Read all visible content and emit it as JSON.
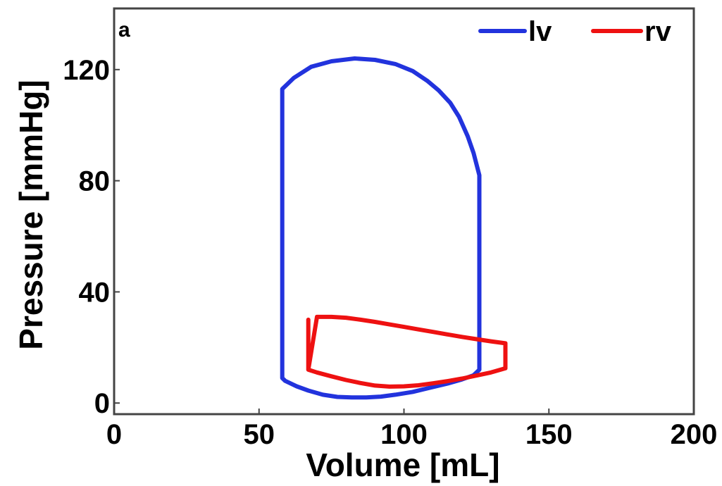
{
  "chart_data": {
    "type": "line",
    "panel_label": "a",
    "xlabel": "Volume [mL]",
    "ylabel": "Pressure [mmHg]",
    "xlim": [
      0,
      200
    ],
    "ylim": [
      -4,
      142
    ],
    "xticks": [
      0,
      50,
      100,
      150,
      200
    ],
    "yticks": [
      0,
      40,
      80,
      120
    ],
    "x_tick_labels": [
      "0",
      "50",
      "100",
      "150",
      "200"
    ],
    "y_tick_labels": [
      "0",
      "40",
      "80",
      "120"
    ],
    "grid": false,
    "legend_position": "top-right",
    "series": [
      {
        "name": "lv",
        "color": "#2233dd",
        "x": [
          58,
          58,
          62,
          68,
          75,
          83,
          90,
          97,
          103,
          108,
          112,
          116,
          119,
          122,
          124,
          126,
          126,
          126,
          124,
          120,
          115,
          109,
          103,
          97,
          92,
          87,
          82,
          77,
          72,
          67,
          63,
          59,
          58
        ],
        "y": [
          9,
          113,
          117,
          121,
          123,
          124,
          123.5,
          122,
          119.5,
          116,
          112.5,
          108,
          103,
          96,
          90,
          82,
          50,
          12,
          10,
          8.5,
          7,
          5.5,
          4,
          3,
          2.3,
          2,
          2,
          2.2,
          3,
          4.5,
          6,
          8,
          9
        ]
      },
      {
        "name": "rv",
        "color": "#ee1111",
        "x": [
          67,
          67,
          70,
          75,
          80,
          85,
          90,
          95,
          100,
          105,
          110,
          115,
          120,
          125,
          130,
          135,
          135,
          130,
          125,
          120,
          115,
          110,
          105,
          100,
          95,
          90,
          85,
          80,
          75,
          70,
          67
        ],
        "y": [
          30,
          12,
          31,
          31,
          30.7,
          30,
          29.2,
          28.3,
          27.4,
          26.5,
          25.6,
          24.7,
          23.8,
          23,
          22.2,
          21.5,
          12.5,
          11,
          9.9,
          8.8,
          7.9,
          7.1,
          6.4,
          6,
          5.9,
          6.3,
          7.2,
          8.3,
          9.6,
          11,
          12
        ]
      }
    ]
  }
}
